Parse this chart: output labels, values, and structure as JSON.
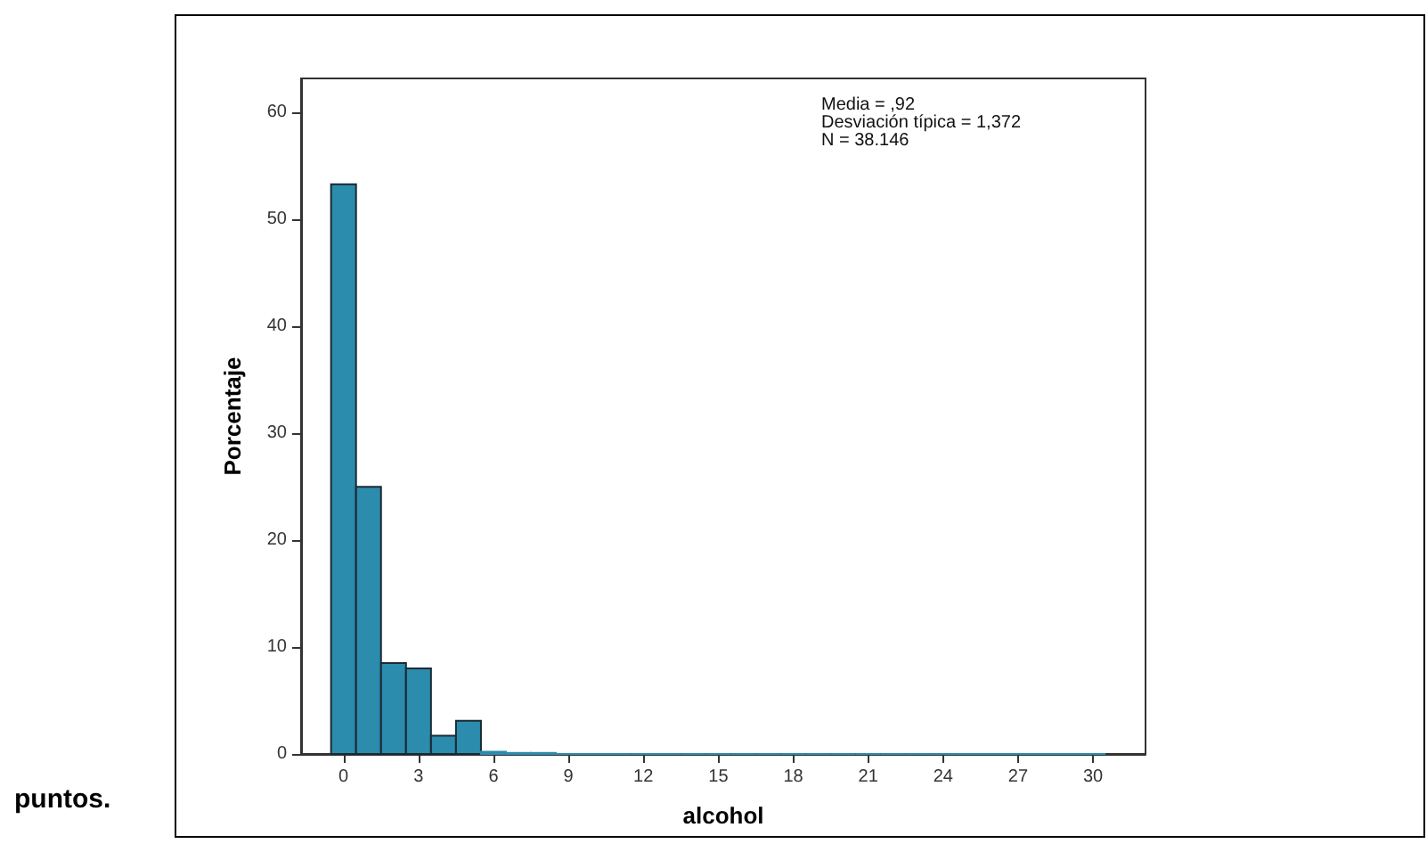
{
  "chart_data": {
    "type": "histogram",
    "xlabel": "alcohol",
    "ylabel": "Porcentaje",
    "color": "#2b8cad",
    "bins": [
      -0.5,
      0.5,
      1.5,
      2.5,
      3.5,
      4.5,
      5.5,
      6.5,
      7.5,
      8.5,
      9.5,
      10.5,
      11.5,
      12.5,
      13.5,
      14.5,
      15.5,
      16.5,
      17.5,
      18.5,
      19.5,
      20.5,
      21.5,
      22.5,
      23.5,
      24.5,
      25.5,
      26.5,
      27.5,
      28.5,
      29.5,
      30.5
    ],
    "values": [
      53.3,
      25,
      8.5,
      8,
      1.7,
      3.1,
      0.2,
      0.1,
      0.1,
      0,
      0,
      0,
      0,
      0,
      0,
      0,
      0,
      0,
      0,
      0,
      0,
      0,
      0,
      0,
      0,
      0,
      0,
      0,
      0,
      0,
      0
    ],
    "xlim": [
      -1.7,
      32.1
    ],
    "ylim": [
      0,
      63.2
    ],
    "xticks": [
      0,
      3,
      6,
      9,
      12,
      15,
      18,
      21,
      24,
      27,
      30
    ],
    "yticks": [
      0,
      10,
      20,
      30,
      40,
      50,
      60
    ],
    "grid": false,
    "annotations": [
      "Media = ,92\nDesviación típica = 1,372\nN = 38.146",
      "puntos."
    ]
  }
}
